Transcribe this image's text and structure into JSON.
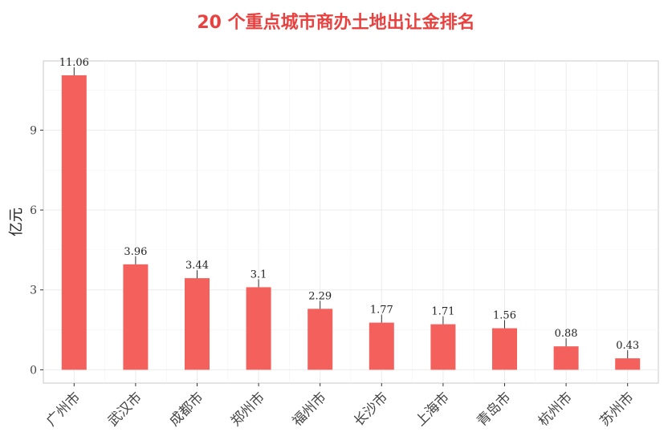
{
  "chart_data": {
    "type": "bar",
    "title": "20 个重点城市商办土地出让金排名",
    "title_color": "#e8413f",
    "bar_color": "#f4605c",
    "categories": [
      "广州市",
      "武汉市",
      "成都市",
      "郑州市",
      "福州市",
      "长沙市",
      "上海市",
      "青岛市",
      "杭州市",
      "苏州市"
    ],
    "values": [
      11.06,
      3.96,
      3.44,
      3.1,
      2.29,
      1.77,
      1.71,
      1.56,
      0.88,
      0.43
    ],
    "data_labels": [
      "11.06",
      "3.96",
      "3.44",
      "3.1",
      "2.29",
      "1.77",
      "1.71",
      "1.56",
      "0.88",
      "0.43"
    ],
    "xlabel": "",
    "ylabel": "亿元",
    "ylim": [
      -0.5,
      11.6
    ],
    "yticks": [
      0,
      3,
      6,
      9
    ],
    "grid": true,
    "legend": "none"
  }
}
